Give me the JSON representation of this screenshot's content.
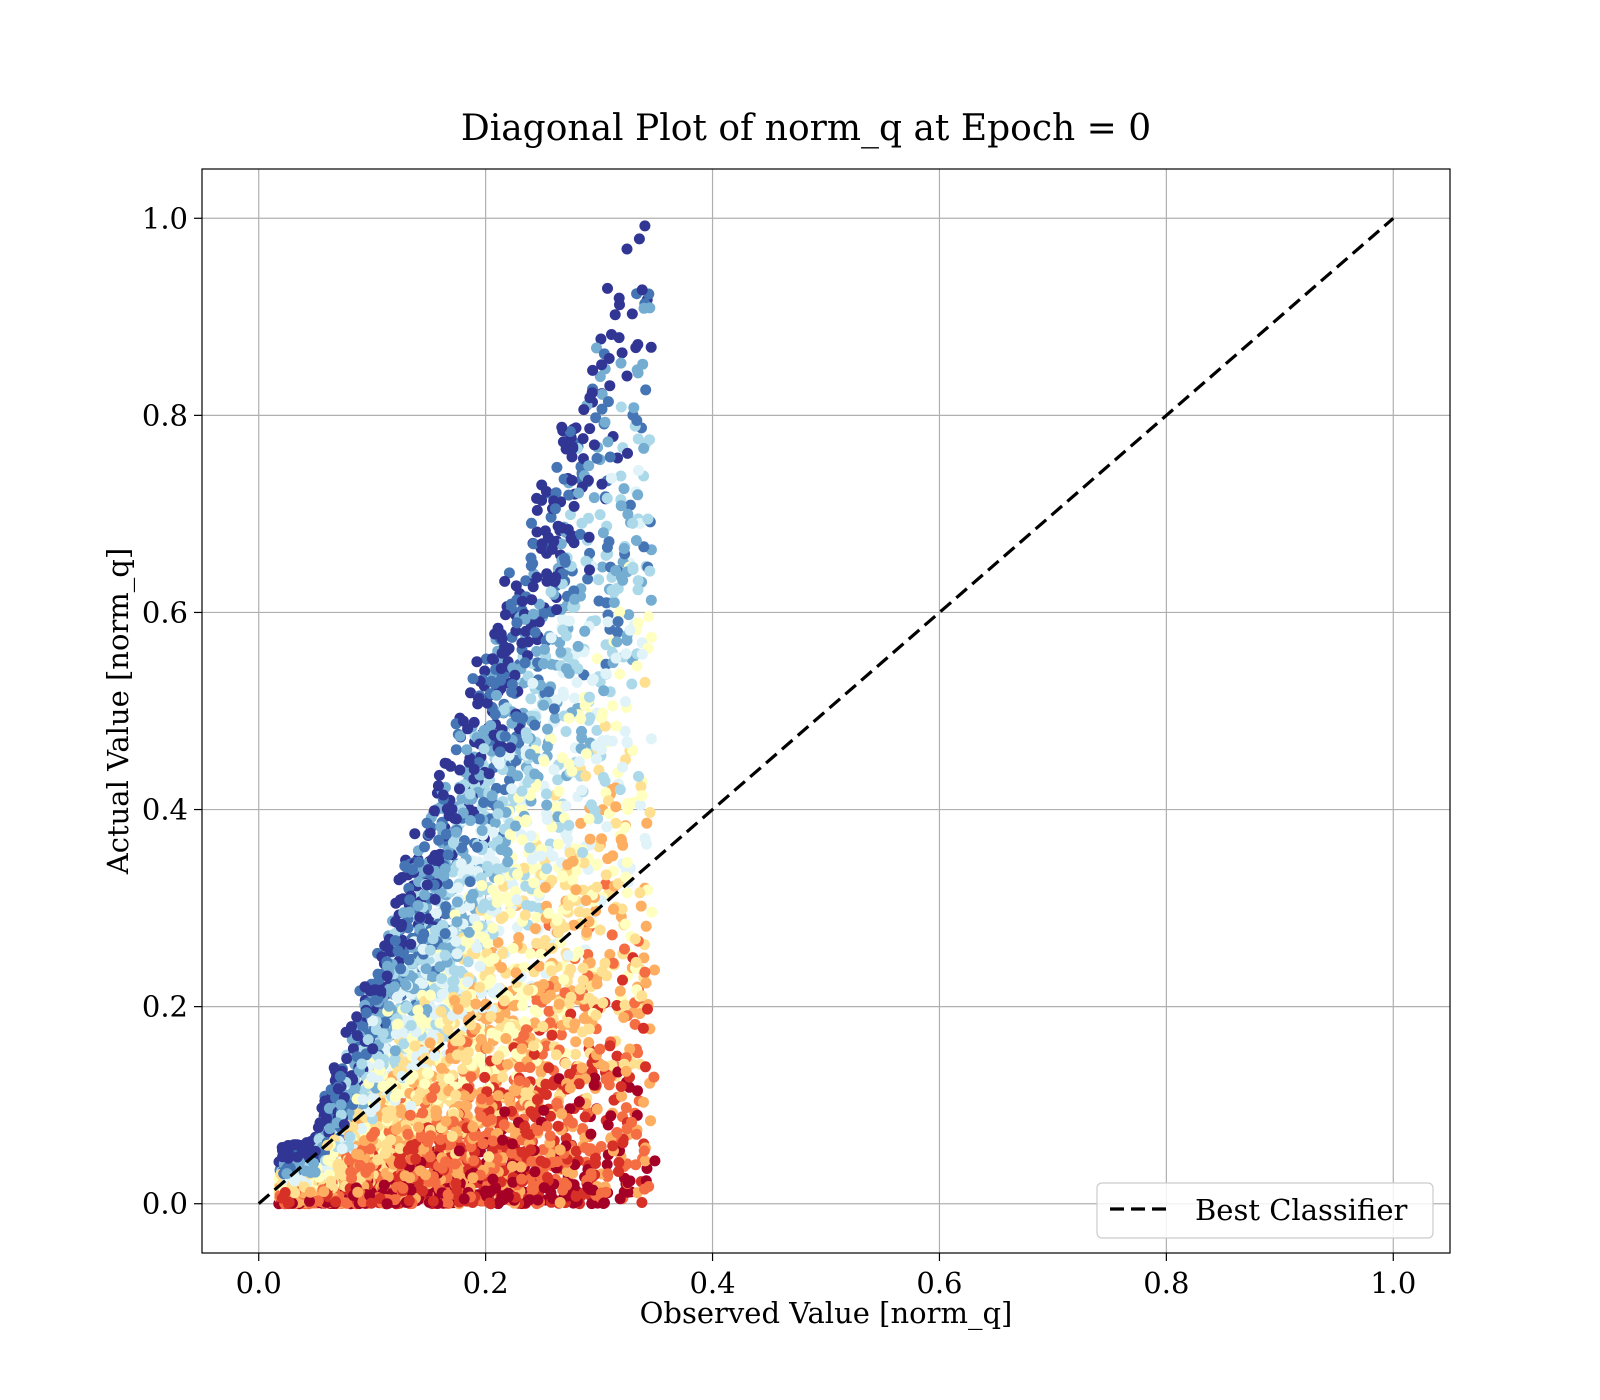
{
  "chart_data": {
    "type": "scatter",
    "title": "Diagonal Plot of norm_q at Epoch = 0",
    "xlabel": "Observed Value [norm_q]",
    "ylabel": "Actual Value [norm_q]",
    "xlim": [
      -0.05,
      1.05
    ],
    "ylim": [
      -0.05,
      1.05
    ],
    "x_ticks": [
      "0.0",
      "0.2",
      "0.4",
      "0.6",
      "0.8",
      "1.0"
    ],
    "y_ticks": [
      "0.0",
      "0.2",
      "0.4",
      "0.6",
      "0.8",
      "1.0"
    ],
    "grid": true,
    "colormap": "RdYlBu",
    "colormap_colors": [
      "#a50026",
      "#d73027",
      "#f46d43",
      "#fdae61",
      "#fee090",
      "#ffffbf",
      "#e0f3f8",
      "#abd9e9",
      "#74add1",
      "#4575b4",
      "#313695"
    ],
    "scatter_cloud": {
      "x_range": [
        0.02,
        0.35
      ],
      "y_range": [
        0.0,
        1.0
      ],
      "description_of_density": "dense near x 0.15-0.35, upper boundary rising from y 0.1 at x 0.02 to y 1.0 at x 0.33"
    },
    "series": [
      {
        "name": "Best Classifier",
        "style": "dashed",
        "color": "#000000",
        "x": [
          0.0,
          1.0
        ],
        "y": [
          0.0,
          1.0
        ]
      }
    ],
    "legend": {
      "placement": "lower-right",
      "entries": [
        "Best Classifier"
      ]
    }
  }
}
